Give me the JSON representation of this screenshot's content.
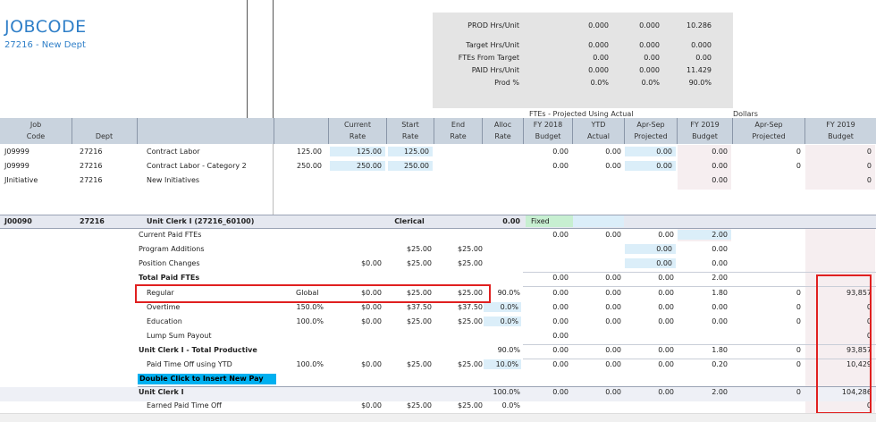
{
  "header": {
    "title": "JOBCODE",
    "subtitle": "27216 - New Dept"
  },
  "prod_summary": {
    "rows": [
      {
        "label": "PROD Hrs/Unit",
        "v1": "0.000",
        "v2": "0.000",
        "v3": "10.286"
      },
      {
        "label": "Target Hrs/Unit",
        "v1": "0.000",
        "v2": "0.000",
        "v3": "0.000"
      },
      {
        "label": "FTEs From Target",
        "v1": "0.00",
        "v2": "0.00",
        "v3": "0.00"
      },
      {
        "label": "PAID Hrs/Unit",
        "v1": "0.000",
        "v2": "0.000",
        "v3": "11.429"
      },
      {
        "label": "Prod %",
        "v1": "0.0%",
        "v2": "0.0%",
        "v3": "90.0%"
      }
    ]
  },
  "group_labels": {
    "ftes": "FTEs - Projected Using Actual",
    "dollars": "Dollars"
  },
  "columns": {
    "job": [
      "Job",
      "Code"
    ],
    "dept": "Dept",
    "current": [
      "Current",
      "Rate"
    ],
    "start": [
      "Start",
      "Rate"
    ],
    "end": [
      "End",
      "Rate"
    ],
    "alloc": [
      "Alloc",
      "Rate"
    ],
    "fy2018": [
      "FY 2018",
      "Budget"
    ],
    "ytd": [
      "YTD",
      "Actual"
    ],
    "aprsep1": [
      "Apr-Sep",
      "Projected"
    ],
    "fy2019a": [
      "FY 2019",
      "Budget"
    ],
    "aprsep2": [
      "Apr-Sep",
      "Projected"
    ],
    "fy2019b": [
      "FY 2019",
      "Budget"
    ]
  },
  "contract_rows": [
    {
      "code": "J09999",
      "dept": "27216",
      "name": "Contract Labor",
      "qty": "125.00",
      "current": "125.00",
      "start": "125.00",
      "fy2018": "0.00",
      "ytd": "0.00",
      "proj": "0.00",
      "fy2019": "0.00",
      "dproj": "0",
      "dfy2019": "0"
    },
    {
      "code": "J09999",
      "dept": "27216",
      "name": "Contract Labor - Category 2",
      "qty": "250.00",
      "current": "250.00",
      "start": "250.00",
      "fy2018": "0.00",
      "ytd": "0.00",
      "proj": "0.00",
      "fy2019": "0.00",
      "dproj": "0",
      "dfy2019": "0"
    },
    {
      "code": "JInitiative",
      "dept": "27216",
      "name": "New Initiatives",
      "fy2019": "0.00",
      "dfy2019": "0"
    }
  ],
  "section": {
    "code": "J00090",
    "dept": "27216",
    "name": "Unit Clerk I (27216_60100)",
    "category": "Clerical",
    "alloc": "0.00",
    "fixed": "Fixed"
  },
  "detail_rows": {
    "current_paid": {
      "label": "Current Paid FTEs",
      "fy2018": "0.00",
      "ytd": "0.00",
      "proj": "0.00",
      "fy2019": "2.00"
    },
    "program_additions": {
      "label": "Program Additions",
      "start": "$25.00",
      "end": "$25.00",
      "proj": "0.00",
      "fy2019": "0.00"
    },
    "position_changes": {
      "label": "Position Changes",
      "current": "$0.00",
      "start": "$25.00",
      "end": "$25.00",
      "proj": "0.00",
      "fy2019": "0.00"
    },
    "total_paid": {
      "label": "Total Paid FTEs",
      "fy2018": "0.00",
      "ytd": "0.00",
      "proj": "0.00",
      "fy2019": "2.00"
    },
    "regular": {
      "label": "Regular",
      "qty": "Global",
      "current": "$0.00",
      "start": "$25.00",
      "end": "$25.00",
      "alloc": "90.0%",
      "fy2018": "0.00",
      "ytd": "0.00",
      "proj": "0.00",
      "fy2019": "1.80",
      "dproj": "0",
      "dfy2019": "93,857"
    },
    "overtime": {
      "label": "Overtime",
      "qty": "150.0%",
      "current": "$0.00",
      "start": "$37.50",
      "end": "$37.50",
      "alloc": "0.0%",
      "fy2018": "0.00",
      "ytd": "0.00",
      "proj": "0.00",
      "fy2019": "0.00",
      "dproj": "0",
      "dfy2019": "0"
    },
    "education": {
      "label": "Education",
      "qty": "100.0%",
      "current": "$0.00",
      "start": "$25.00",
      "end": "$25.00",
      "alloc": "0.0%",
      "fy2018": "0.00",
      "ytd": "0.00",
      "proj": "0.00",
      "fy2019": "0.00",
      "dproj": "0",
      "dfy2019": "0"
    },
    "lump_sum": {
      "label": "Lump Sum Payout",
      "fy2018": "0.00",
      "dfy2019": "0"
    },
    "total_productive": {
      "label": "Unit Clerk I - Total Productive",
      "alloc": "90.0%",
      "fy2018": "0.00",
      "ytd": "0.00",
      "proj": "0.00",
      "fy2019": "1.80",
      "dproj": "0",
      "dfy2019": "93,857"
    },
    "pto": {
      "label": "Paid Time Off using YTD",
      "qty": "100.0%",
      "current": "$0.00",
      "start": "$25.00",
      "end": "$25.00",
      "alloc": "10.0%",
      "fy2018": "0.00",
      "ytd": "0.00",
      "proj": "0.00",
      "fy2019": "0.20",
      "dproj": "0",
      "dfy2019": "10,429"
    },
    "insert": {
      "label": "Double Click to Insert New Pay Type"
    },
    "unit_total": {
      "label": "Unit Clerk I",
      "alloc": "100.0%",
      "fy2018": "0.00",
      "ytd": "0.00",
      "proj": "0.00",
      "fy2019": "2.00",
      "dproj": "0",
      "dfy2019": "104,286"
    },
    "earned_pto": {
      "label": "Earned Paid Time Off",
      "current": "$0.00",
      "start": "$25.00",
      "end": "$25.00",
      "alloc": "0.0%",
      "dfy2019": "0"
    }
  }
}
